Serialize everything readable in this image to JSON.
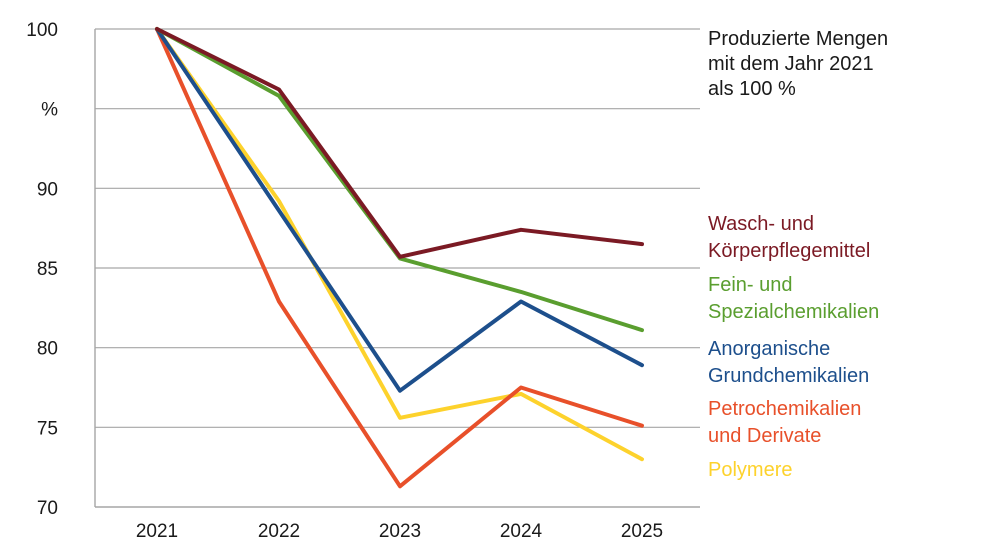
{
  "chart_data": {
    "type": "line",
    "title": "",
    "xlabel": "",
    "ylabel": "%",
    "x": [
      "2021",
      "2022",
      "2023",
      "2024",
      "2025"
    ],
    "ylim": [
      70,
      100
    ],
    "yticks": [
      "100",
      "95",
      "90",
      "85",
      "80",
      "75",
      "70"
    ],
    "ytick_values": [
      100,
      95,
      90,
      85,
      80,
      75,
      70
    ],
    "y_unit_label": "%",
    "grid": true,
    "annotation": [
      "Produzierte Mengen",
      "mit dem Jahr 2021",
      "als 100 %"
    ],
    "series": [
      {
        "name": "Wasch- und Körperpflegemittel",
        "label_lines": [
          "Wasch- und",
          "Körperpflegemittel"
        ],
        "color": "#7b1a24",
        "values": [
          100,
          96.2,
          85.7,
          87.4,
          86.5
        ]
      },
      {
        "name": "Fein- und Spezialchemikalien",
        "label_lines": [
          "Fein- und",
          "Spezialchemikalien"
        ],
        "color": "#5a9e2f",
        "values": [
          100,
          95.8,
          85.6,
          83.5,
          81.1
        ]
      },
      {
        "name": "Anorganische Grundchemikalien",
        "label_lines": [
          "Anorganische",
          "Grundchemikalien"
        ],
        "color": "#1d4f8c",
        "values": [
          100,
          88.6,
          77.3,
          82.9,
          78.9
        ]
      },
      {
        "name": "Petrochemikalien und Derivate",
        "label_lines": [
          "Petrochemikalien",
          "und Derivate"
        ],
        "color": "#e8502a",
        "values": [
          100,
          82.9,
          71.3,
          77.5,
          75.1
        ]
      },
      {
        "name": "Polymere",
        "label_lines": [
          "Polymere"
        ],
        "color": "#fdd22c",
        "values": [
          100,
          89.2,
          75.6,
          77.1,
          73.0
        ]
      }
    ]
  }
}
